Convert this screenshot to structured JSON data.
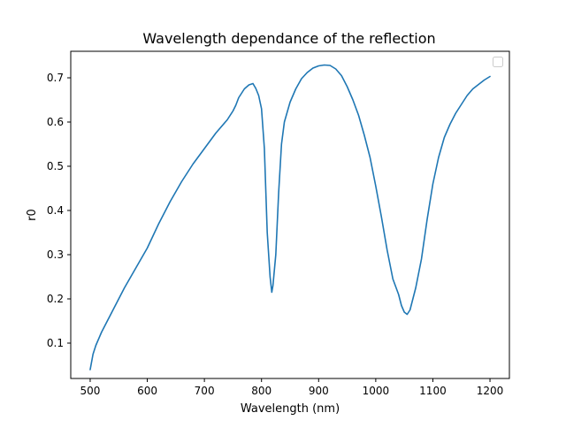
{
  "chart_data": {
    "type": "line",
    "title": "Wavelength dependance of the reflection",
    "xlabel": "Wavelength (nm)",
    "ylabel": "r0",
    "xlim": [
      466,
      1234
    ],
    "ylim": [
      0.02,
      0.76
    ],
    "xticks": [
      500,
      600,
      700,
      800,
      900,
      1000,
      1100,
      1200
    ],
    "xtick_labels": [
      "500",
      "600",
      "700",
      "800",
      "900",
      "1000",
      "1100",
      "1200"
    ],
    "yticks": [
      0.1,
      0.2,
      0.3,
      0.4,
      0.5,
      0.6,
      0.7
    ],
    "ytick_labels": [
      "0.1",
      "0.2",
      "0.3",
      "0.4",
      "0.5",
      "0.6",
      "0.7"
    ],
    "grid": false,
    "legend": {
      "placement": "top-right",
      "entries": []
    },
    "series": [
      {
        "name": "",
        "color": "#1f77b4",
        "x": [
          500,
          505,
          510,
          520,
          540,
          560,
          580,
          600,
          620,
          640,
          660,
          680,
          700,
          720,
          740,
          750,
          755,
          760,
          770,
          778,
          785,
          790,
          795,
          800,
          805,
          810,
          815,
          818,
          820,
          825,
          830,
          835,
          840,
          850,
          860,
          870,
          880,
          890,
          900,
          910,
          920,
          930,
          940,
          950,
          960,
          970,
          980,
          990,
          1000,
          1010,
          1020,
          1030,
          1040,
          1045,
          1050,
          1055,
          1060,
          1070,
          1080,
          1090,
          1100,
          1110,
          1120,
          1130,
          1140,
          1150,
          1160,
          1170,
          1180,
          1190,
          1200
        ],
        "values": [
          0.04,
          0.075,
          0.095,
          0.125,
          0.175,
          0.225,
          0.27,
          0.315,
          0.37,
          0.42,
          0.465,
          0.505,
          0.54,
          0.575,
          0.605,
          0.625,
          0.638,
          0.655,
          0.675,
          0.684,
          0.687,
          0.676,
          0.66,
          0.63,
          0.54,
          0.35,
          0.25,
          0.215,
          0.23,
          0.3,
          0.44,
          0.55,
          0.6,
          0.645,
          0.675,
          0.698,
          0.712,
          0.722,
          0.727,
          0.729,
          0.728,
          0.72,
          0.705,
          0.68,
          0.65,
          0.615,
          0.57,
          0.52,
          0.455,
          0.385,
          0.31,
          0.245,
          0.21,
          0.185,
          0.17,
          0.165,
          0.175,
          0.225,
          0.29,
          0.38,
          0.46,
          0.52,
          0.565,
          0.595,
          0.62,
          0.64,
          0.66,
          0.675,
          0.685,
          0.695,
          0.703
        ]
      }
    ]
  }
}
